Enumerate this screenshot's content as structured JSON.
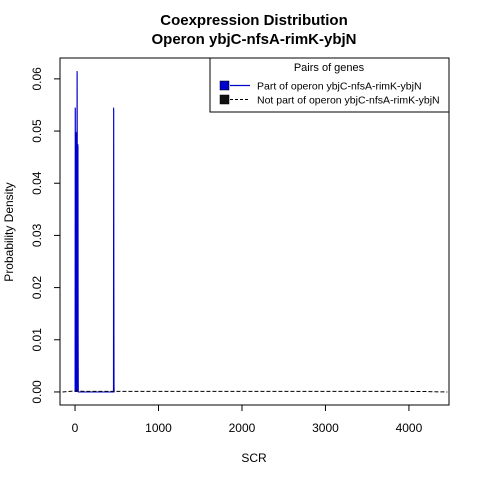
{
  "chart_data": {
    "type": "line",
    "title": [
      "Coexpression Distribution",
      "Operon ybjC-nfsA-rimK-ybjN"
    ],
    "xlabel": "SCR",
    "ylabel": "Probability Density",
    "xlim": [
      -180,
      4480
    ],
    "ylim": [
      -0.0025,
      0.064
    ],
    "x_ticks": [
      0,
      1000,
      2000,
      3000,
      4000
    ],
    "y_ticks": [
      0.0,
      0.01,
      0.02,
      0.03,
      0.04,
      0.05,
      0.06
    ],
    "y_tick_labels": [
      "0.00",
      "0.01",
      "0.02",
      "0.03",
      "0.04",
      "0.05",
      "0.06"
    ],
    "legend": {
      "title": "Pairs of genes",
      "position": "top-right",
      "entries": [
        "Part of operon ybjC-nfsA-rimK-ybjN",
        "Not part of operon ybjC-nfsA-rimK-ybjN"
      ]
    },
    "series": [
      {
        "name": "Part of operon ybjC-nfsA-rimK-ybjN",
        "color": "#0000cc",
        "line_style": "solid",
        "x": [
          0,
          2,
          4,
          6,
          8,
          10,
          12,
          14,
          16,
          18,
          20,
          22,
          24,
          26,
          28,
          30,
          32,
          34,
          36,
          38,
          40,
          42,
          44,
          46,
          48,
          60,
          100,
          200,
          300,
          400,
          460,
          462,
          464,
          466,
          468,
          470,
          472
        ],
        "y": [
          0.0,
          0.0545,
          0.0542,
          0.01,
          0.0,
          0.001,
          0.0498,
          0.0495,
          0.005,
          0.0,
          0.0005,
          0.02,
          0.0615,
          0.061,
          0.04,
          0.01,
          0.0,
          0.0475,
          0.047,
          0.01,
          0.0,
          0.0,
          0.0,
          0.0,
          0.0,
          0.0,
          0.0,
          0.0,
          0.0,
          0.0,
          0.0,
          0.0545,
          0.054,
          0.02,
          0.001,
          0.0,
          0.0
        ]
      },
      {
        "name": "Not part of operon ybjC-nfsA-rimK-ybjN",
        "color": "#000000",
        "line_style": "dashed",
        "x": [
          -150,
          0,
          50,
          100,
          500,
          1000,
          2000,
          3000,
          4000,
          4200,
          4300,
          4400,
          4460
        ],
        "y": [
          0.0,
          0.0002,
          0.0002,
          0.0001,
          0.0001,
          0.0001,
          0.0001,
          0.0001,
          0.0001,
          8e-05,
          4e-05,
          1e-05,
          0.0
        ]
      }
    ]
  }
}
